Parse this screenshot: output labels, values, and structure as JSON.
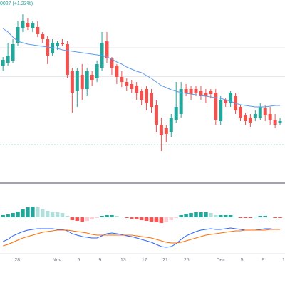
{
  "chart_data": {
    "type": "candlestick",
    "annotation": "0027 (+1.23%)",
    "xlim": [
      -0.6,
      57
    ],
    "ylim": [
      0,
      250
    ],
    "xticks": [
      {
        "value": 2.9,
        "label": "28"
      },
      {
        "value": 10.9,
        "label": "Nov"
      },
      {
        "value": 15.3,
        "label": "5"
      },
      {
        "value": 19.6,
        "label": "9"
      },
      {
        "value": 24.3,
        "label": "13"
      },
      {
        "value": 28.6,
        "label": "17"
      },
      {
        "value": 32.8,
        "label": "21"
      },
      {
        "value": 37.1,
        "label": "25"
      },
      {
        "value": 44,
        "label": "Dec"
      },
      {
        "value": 48.3,
        "label": "5"
      },
      {
        "value": 52.6,
        "label": "9"
      },
      {
        "value": 56.7,
        "label": "1"
      }
    ],
    "up_color": "#26a69a",
    "down_color": "#ef5350",
    "open": [
      158,
      162,
      165,
      190,
      210,
      218,
      210,
      212,
      202,
      195,
      175,
      185,
      190,
      188,
      150,
      122,
      145,
      125,
      145,
      140,
      155,
      192,
      168,
      158,
      142,
      135,
      132,
      130,
      122,
      125,
      120,
      102,
      75,
      70,
      65,
      82,
      90,
      125,
      125,
      125,
      122,
      120,
      122,
      120,
      80,
      110,
      105,
      115,
      100,
      88,
      85,
      85,
      85,
      98,
      90,
      82,
      78
    ],
    "high": [
      170,
      190,
      195,
      220,
      230,
      225,
      220,
      220,
      205,
      200,
      195,
      192,
      195,
      192,
      155,
      155,
      160,
      155,
      150,
      165,
      205,
      205,
      170,
      160,
      150,
      140,
      138,
      135,
      125,
      130,
      125,
      110,
      85,
      75,
      90,
      135,
      135,
      132,
      130,
      130,
      130,
      125,
      125,
      125,
      115,
      112,
      122,
      120,
      102,
      92,
      90,
      95,
      105,
      102,
      100,
      90,
      85
    ],
    "low": [
      150,
      158,
      162,
      185,
      205,
      208,
      205,
      198,
      190,
      160,
      172,
      180,
      185,
      140,
      92,
      100,
      110,
      115,
      130,
      135,
      150,
      162,
      145,
      132,
      128,
      122,
      120,
      110,
      102,
      95,
      92,
      65,
      38,
      50,
      58,
      78,
      85,
      115,
      110,
      115,
      110,
      105,
      112,
      75,
      75,
      100,
      100,
      90,
      80,
      75,
      72,
      80,
      82,
      80,
      75,
      70,
      75
    ],
    "close": [
      166,
      172,
      188,
      212,
      220,
      212,
      218,
      202,
      195,
      172,
      190,
      190,
      188,
      145,
      120,
      150,
      125,
      150,
      138,
      160,
      190,
      168,
      155,
      142,
      135,
      130,
      125,
      120,
      110,
      105,
      100,
      75,
      60,
      62,
      85,
      100,
      125,
      120,
      118,
      120,
      115,
      115,
      118,
      82,
      110,
      105,
      120,
      95,
      85,
      80,
      78,
      90,
      100,
      88,
      82,
      75,
      80
    ],
    "ma": {
      "color": "#5b9bf0",
      "values": [
        210,
        205,
        198,
        192,
        190,
        188,
        187,
        186,
        185,
        184,
        183,
        182,
        180,
        179,
        178,
        177,
        176,
        175,
        174,
        173,
        172,
        170,
        167,
        163,
        160,
        156,
        153,
        150,
        148,
        144,
        140,
        135,
        130,
        127,
        124,
        122,
        120,
        119,
        118,
        117,
        116,
        115,
        114,
        113,
        112,
        110,
        108,
        105,
        103,
        102,
        101,
        100,
        100,
        100,
        101,
        102,
        102
      ]
    },
    "macd_panel": {
      "ylim": [
        -65,
        45
      ],
      "hist_colors": [
        "#26a69a",
        "#b2dfdb",
        "#ffcdd2",
        "#ff5252"
      ],
      "histogram": [
        3,
        4,
        6,
        8,
        11,
        14,
        15,
        14,
        11,
        9,
        8,
        7,
        6,
        2,
        -4,
        -5,
        -6,
        -5,
        -3,
        -1,
        2,
        3,
        3,
        2,
        1,
        -1,
        -2,
        -3,
        -4,
        -5,
        -6,
        -7,
        -8,
        -7,
        -4,
        -1,
        3,
        5,
        6,
        7,
        7,
        7,
        6,
        3,
        3,
        3,
        3,
        1,
        -1,
        -1,
        -1,
        1,
        2,
        2,
        1,
        -1,
        -1
      ],
      "macd": {
        "color": "#2962ff",
        "values": [
          -34,
          -31,
          -26,
          -23,
          -20,
          -18,
          -17,
          -16,
          -16,
          -16,
          -16,
          -17,
          -17,
          -19,
          -23,
          -25,
          -27,
          -28,
          -29,
          -29,
          -26,
          -23,
          -22,
          -23,
          -24,
          -26,
          -27,
          -29,
          -31,
          -33,
          -35,
          -38,
          -41,
          -42,
          -41,
          -37,
          -31,
          -26,
          -23,
          -20,
          -18,
          -17,
          -16,
          -17,
          -17,
          -16,
          -15,
          -16,
          -17,
          -18,
          -18,
          -18,
          -17,
          -16,
          -16,
          -17,
          -17
        ]
      },
      "signal": {
        "color": "#ff6d00",
        "values": [
          -40,
          -38,
          -35,
          -32,
          -29,
          -27,
          -25,
          -23,
          -21,
          -20,
          -19,
          -18,
          -18,
          -18,
          -19,
          -20,
          -21,
          -22,
          -24,
          -25,
          -25,
          -25,
          -25,
          -25,
          -25,
          -25,
          -25,
          -26,
          -27,
          -28,
          -29,
          -31,
          -33,
          -35,
          -36,
          -36,
          -35,
          -33,
          -31,
          -29,
          -27,
          -25,
          -24,
          -23,
          -22,
          -21,
          -20,
          -19,
          -19,
          -18,
          -18,
          -18,
          -18,
          -18,
          -17,
          -17,
          -17
        ]
      }
    }
  }
}
